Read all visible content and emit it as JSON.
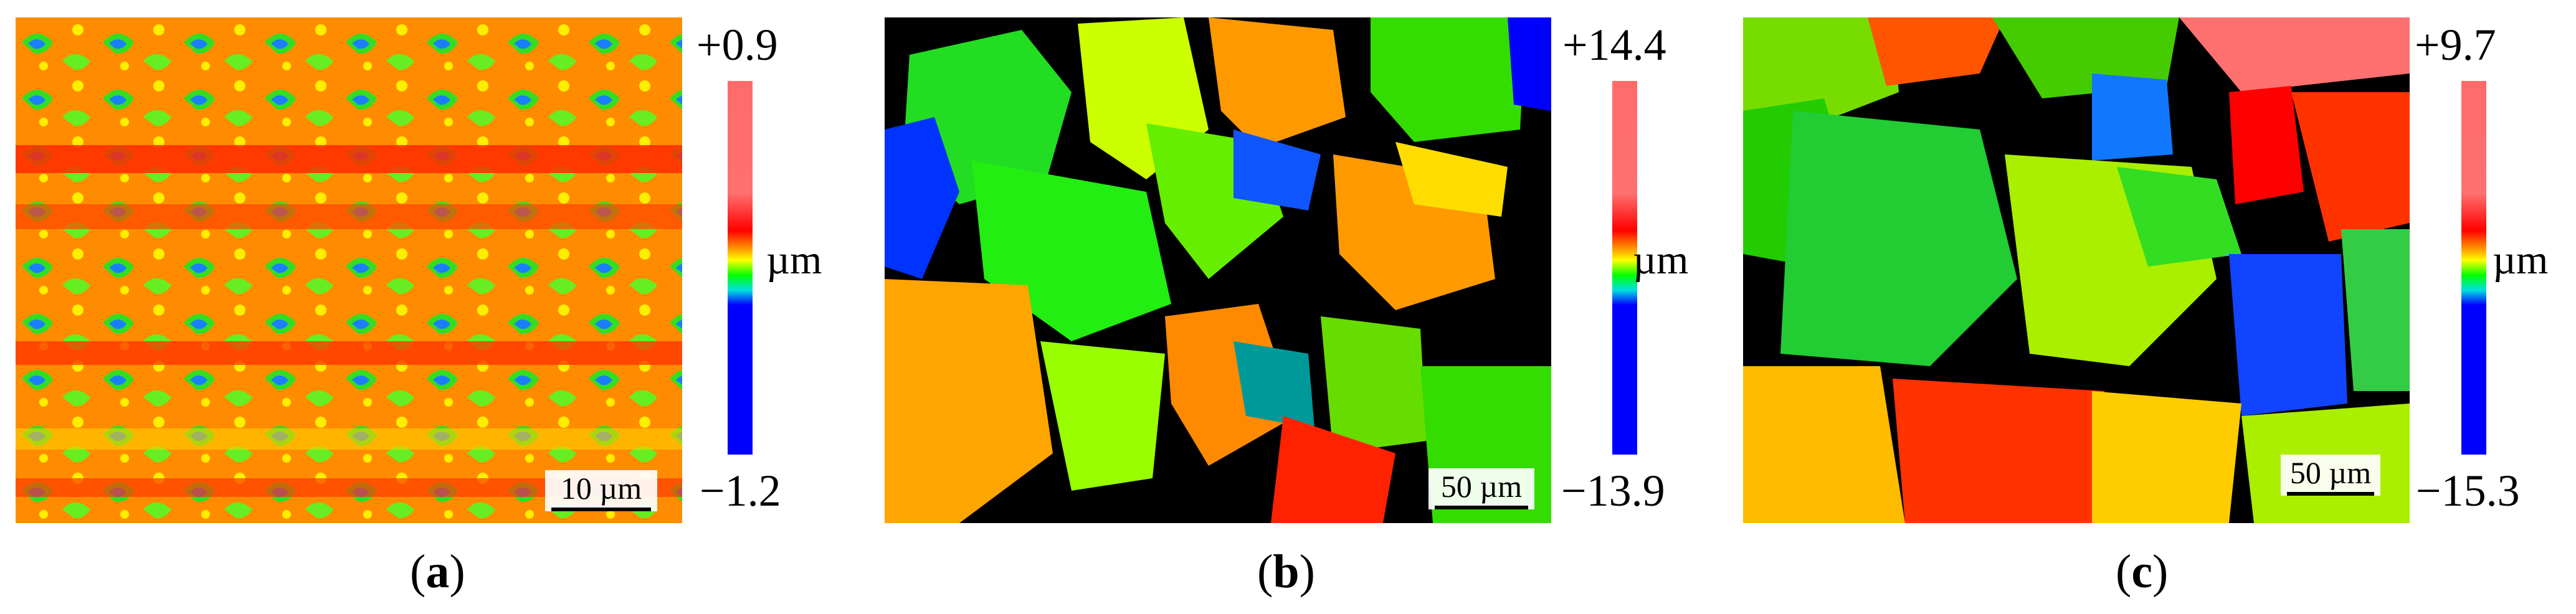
{
  "panels": [
    {
      "id": "a",
      "max_label": "+0.9",
      "min_label": "−1.2",
      "unit": "µm",
      "scale_bar": "10 µm",
      "caption_letter": "a"
    },
    {
      "id": "b",
      "max_label": "+14.4",
      "min_label": "−13.9",
      "unit": "µm",
      "scale_bar": "50 µm",
      "caption_letter": "b"
    },
    {
      "id": "c",
      "max_label": "+9.7",
      "min_label": "−15.3",
      "unit": "µm",
      "scale_bar": "50 µm",
      "caption_letter": "c"
    }
  ],
  "colors": {
    "high": "#ff6b6b",
    "peak": "#ff0000",
    "mid_high": "#ffff00",
    "mid": "#00ff00",
    "low": "#0000ff",
    "masked": "#000000"
  }
}
